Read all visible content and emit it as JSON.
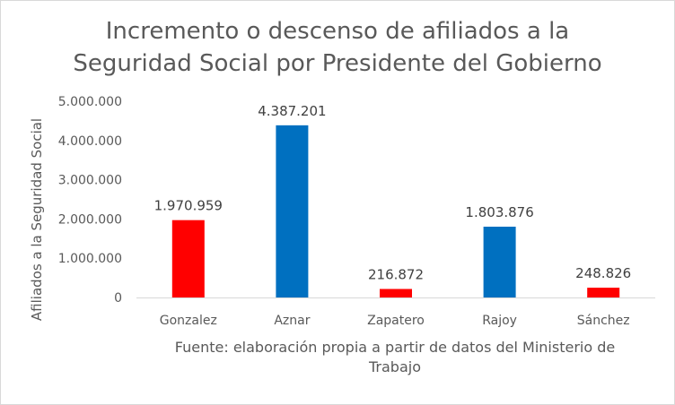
{
  "chart_data": {
    "type": "bar",
    "title_line1": "Incremento o descenso de afiliados a la",
    "title_line2": "Seguridad Social por Presidente del Gobierno",
    "ylabel": "Afiliados a la Seguridad Social",
    "xlabel_line1": "Fuente: elaboración propia a partir de datos del Ministerio de",
    "xlabel_line2": "Trabajo",
    "categories": [
      "Gonzalez",
      "Aznar",
      "Zapatero",
      "Rajoy",
      "Sánchez"
    ],
    "values": [
      1970959,
      4387201,
      216872,
      1803876,
      248826
    ],
    "value_labels": [
      "1.970.959",
      "4.387.201",
      "216.872",
      "1.803.876",
      "248.826"
    ],
    "colors": [
      "#ff0000",
      "#0070c0",
      "#ff0000",
      "#0070c0",
      "#ff0000"
    ],
    "ylim": [
      0,
      5000000
    ],
    "yticks": [
      0,
      1000000,
      2000000,
      3000000,
      4000000,
      5000000
    ],
    "ytick_labels": [
      "0",
      "1.000.000",
      "2.000.000",
      "3.000.000",
      "4.000.000",
      "5.000.000"
    ],
    "grid": false,
    "legend": "none"
  }
}
